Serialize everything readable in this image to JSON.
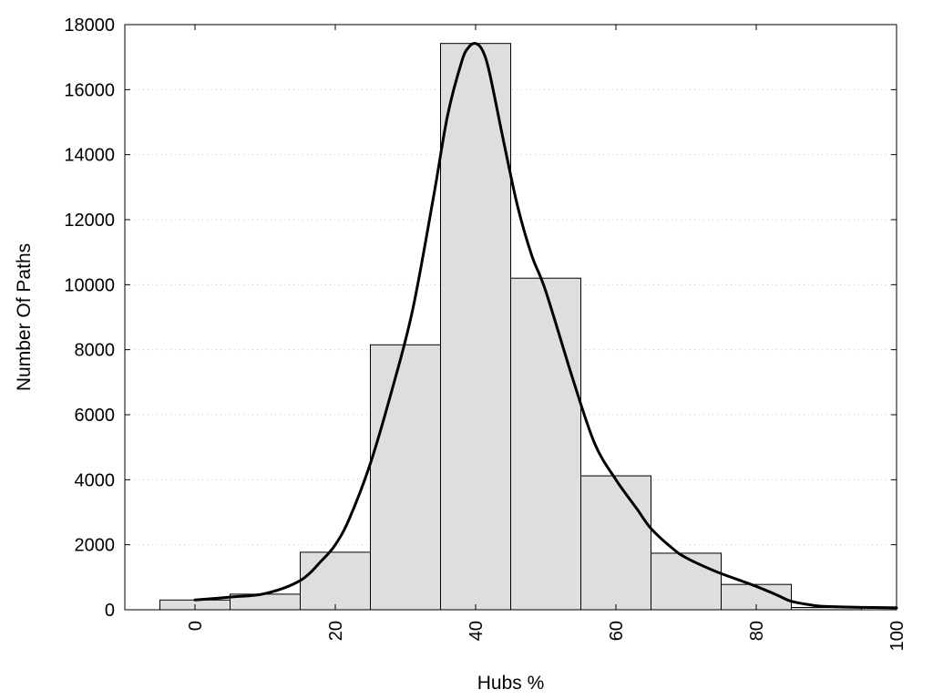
{
  "chart_data": {
    "type": "bar",
    "xlabel": "Hubs %",
    "ylabel": "Number Of Paths",
    "xlim": [
      -10,
      100
    ],
    "ylim": [
      0,
      18000
    ],
    "grid": true,
    "xticks": [
      0,
      20,
      40,
      60,
      80,
      100
    ],
    "yticks": [
      0,
      2000,
      4000,
      6000,
      8000,
      10000,
      12000,
      14000,
      16000,
      18000
    ],
    "bin_width": 10,
    "bar_color": "#dedede",
    "curve_color": "#000000",
    "bars": [
      {
        "x": 0,
        "value": 300
      },
      {
        "x": 10,
        "value": 480
      },
      {
        "x": 20,
        "value": 1770
      },
      {
        "x": 30,
        "value": 8150
      },
      {
        "x": 40,
        "value": 17420
      },
      {
        "x": 50,
        "value": 10200
      },
      {
        "x": 60,
        "value": 4120
      },
      {
        "x": 70,
        "value": 1740
      },
      {
        "x": 80,
        "value": 780
      },
      {
        "x": 90,
        "value": 70
      }
    ],
    "curve": {
      "x": [
        0,
        5,
        10,
        15,
        18,
        20,
        22,
        25,
        28,
        31,
        34,
        36,
        38,
        39,
        40,
        41,
        42,
        44,
        46,
        48,
        50,
        54,
        57,
        60,
        63,
        65,
        68,
        70,
        74,
        78,
        80,
        83,
        85,
        88,
        90,
        95,
        100
      ],
      "y": [
        300,
        390,
        500,
        900,
        1500,
        2000,
        2800,
        4500,
        6700,
        9200,
        12700,
        15200,
        16850,
        17300,
        17420,
        17200,
        16500,
        14400,
        12400,
        10900,
        9800,
        7000,
        5100,
        4000,
        3100,
        2500,
        1900,
        1600,
        1200,
        880,
        720,
        450,
        260,
        140,
        100,
        75,
        60
      ]
    }
  }
}
